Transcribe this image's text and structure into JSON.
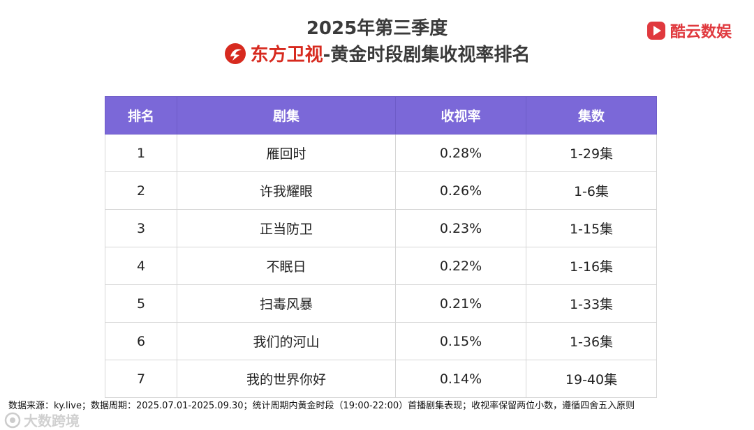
{
  "header": {
    "title_line1": "2025年第三季度",
    "brand_name": "东方卫视",
    "title_line2_rest": "-黄金时段剧集收视率排名"
  },
  "top_logo": {
    "text": "酷云数娱",
    "icon": "play-logo-icon",
    "color": "#e0393e"
  },
  "chart_data": {
    "type": "table",
    "columns": [
      "排名",
      "剧集",
      "收视率",
      "集数"
    ],
    "rows": [
      [
        "1",
        "雁回时",
        "0.28%",
        "1-29集"
      ],
      [
        "2",
        "许我耀眼",
        "0.26%",
        "1-6集"
      ],
      [
        "3",
        "正当防卫",
        "0.23%",
        "1-15集"
      ],
      [
        "4",
        "不眠日",
        "0.22%",
        "1-16集"
      ],
      [
        "5",
        "扫毒风暴",
        "0.21%",
        "1-33集"
      ],
      [
        "6",
        "我们的河山",
        "0.15%",
        "1-36集"
      ],
      [
        "7",
        "我的世界你好",
        "0.14%",
        "19-40集"
      ]
    ],
    "header_color": "#7b68d8"
  },
  "footer": {
    "note": "数据来源：ky.live；数据周期：2025.07.01-2025.09.30；统计周期内黄金时段（19:00-22:00）首播剧集表现；收视率保留两位小数，遵循四舍五入原则"
  },
  "watermark": {
    "text": "大数跨境"
  }
}
